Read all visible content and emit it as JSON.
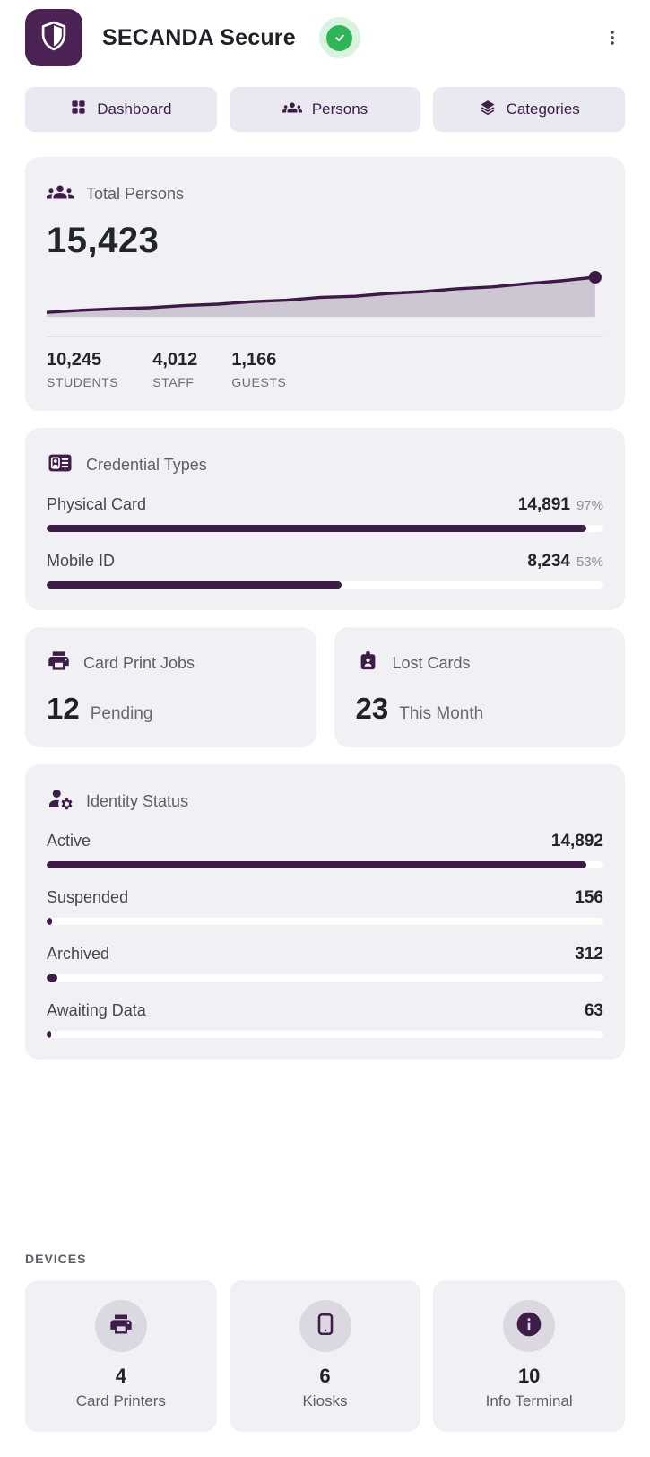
{
  "header": {
    "title": "SECANDA Secure",
    "status": "ok"
  },
  "nav": {
    "tabs": [
      {
        "label": "Dashboard",
        "icon": "grid-icon"
      },
      {
        "label": "Persons",
        "icon": "people-icon"
      },
      {
        "label": "Categories",
        "icon": "layers-icon"
      }
    ]
  },
  "cards": {
    "total_persons": {
      "title": "Total Persons",
      "icon": "people-icon",
      "value": "15,423",
      "breakdown": [
        {
          "value": "10,245",
          "label": "STUDENTS"
        },
        {
          "value": "4,012",
          "label": "STAFF"
        },
        {
          "value": "1,166",
          "label": "GUESTS"
        }
      ]
    },
    "credential_types": {
      "title": "Credential Types",
      "icon": "id-card-icon",
      "rows": [
        {
          "label": "Physical Card",
          "value": "14,891",
          "percent": "97%",
          "bar_percent": 97
        },
        {
          "label": "Mobile ID",
          "value": "8,234",
          "percent": "53%",
          "bar_percent": 53
        }
      ]
    },
    "card_print_jobs": {
      "title": "Card Print Jobs",
      "icon": "printer-icon",
      "value": "12",
      "caption": "Pending"
    },
    "lost_cards": {
      "title": "Lost Cards",
      "icon": "badge-icon",
      "value": "23",
      "caption": "This Month"
    },
    "identity_status": {
      "title": "Identity Status",
      "icon": "person-gear-icon",
      "rows": [
        {
          "label": "Active",
          "value": "14,892",
          "bar_percent": 97
        },
        {
          "label": "Suspended",
          "value": "156",
          "bar_percent": 1
        },
        {
          "label": "Archived",
          "value": "312",
          "bar_percent": 2
        },
        {
          "label": "Awaiting Data",
          "value": "63",
          "bar_percent": 0.7
        }
      ]
    }
  },
  "devices": {
    "section_label": "DEVICES",
    "items": [
      {
        "value": "4",
        "label": "Card Printers",
        "icon": "printer-icon"
      },
      {
        "value": "6",
        "label": "Kiosks",
        "icon": "tablet-icon"
      },
      {
        "value": "10",
        "label": "Info Terminal",
        "icon": "info-icon"
      }
    ]
  },
  "chart_data": {
    "type": "area",
    "title": "Total Persons trend sparkline (no axes shown)",
    "xlabel": "",
    "ylabel": "",
    "values_normalized": [
      0.02,
      0.08,
      0.12,
      0.15,
      0.21,
      0.25,
      0.32,
      0.36,
      0.44,
      0.47,
      0.55,
      0.6,
      0.68,
      0.73,
      0.82,
      0.9,
      1.0
    ],
    "end_value": "15,423",
    "grid": false,
    "legend": false
  },
  "icons": [
    "shield-icon",
    "check-circle-icon",
    "kebab-menu-icon",
    "grid-icon",
    "people-icon",
    "layers-icon",
    "id-card-icon",
    "printer-icon",
    "badge-icon",
    "person-gear-icon",
    "tablet-icon",
    "info-icon"
  ],
  "colors": {
    "primary_purple": "#3f1d49",
    "logo_purple": "#4a2253",
    "bar_fill": "#3e1c48",
    "card_background": "#f1f0f4",
    "nav_background": "#eae8f0",
    "sparkline_fill": "#cdc7d3",
    "sparkline_line": "#3d1a46",
    "status_green": "#2fb457",
    "status_green_light": "#d9f3df",
    "text_dark": "#22252a",
    "text_gray": "#5c6067"
  }
}
